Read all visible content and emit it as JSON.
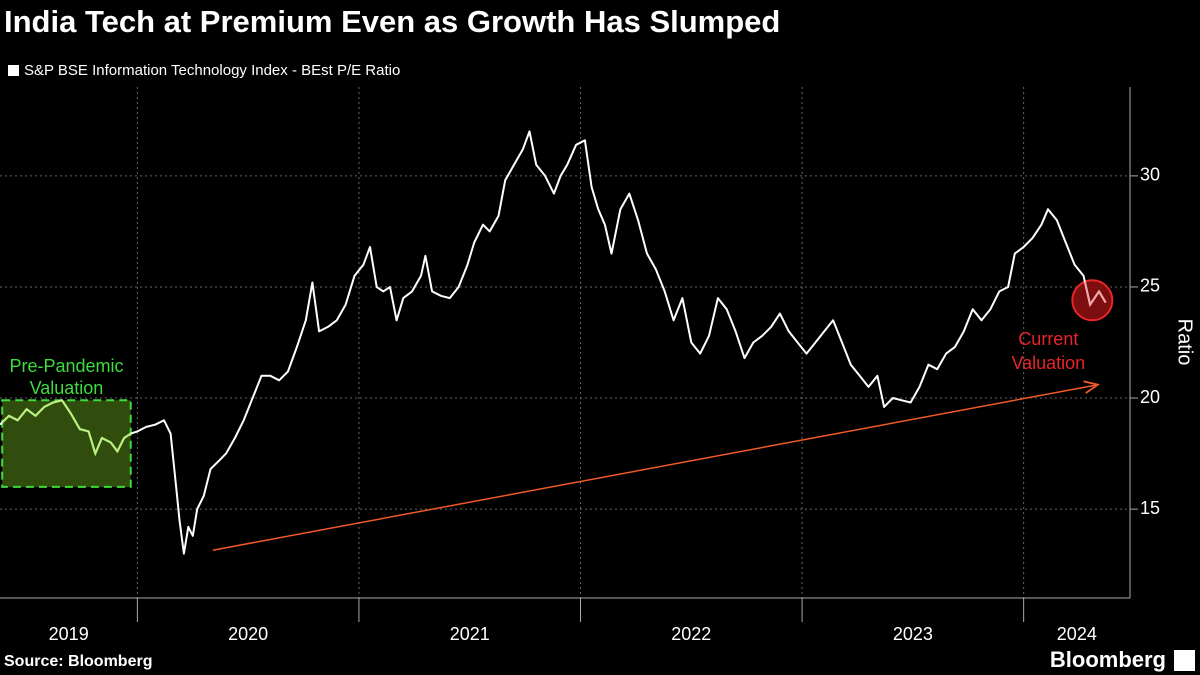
{
  "chart_data": {
    "type": "line",
    "title": "India Tech at Premium Even as Growth Has Slumped",
    "y_label": "Ratio",
    "source": "Source: Bloomberg",
    "logo": "Bloomberg",
    "year_labels": [
      "2019",
      "2020",
      "2021",
      "2022",
      "2023",
      "2024"
    ],
    "xlim": [
      2019.38,
      2024.48
    ],
    "xticks": [
      2020,
      2021,
      2022,
      2023,
      2024
    ],
    "ylim": [
      11,
      34
    ],
    "yticks": [
      15,
      20,
      25,
      30
    ],
    "grid": true,
    "x": [
      2019.38,
      2019.42,
      2019.46,
      2019.5,
      2019.54,
      2019.58,
      2019.62,
      2019.66,
      2019.7,
      2019.74,
      2019.78,
      2019.81,
      2019.84,
      2019.88,
      2019.91,
      2019.94,
      2019.97,
      2020.0,
      2020.04,
      2020.08,
      2020.12,
      2020.15,
      2020.17,
      2020.19,
      2020.21,
      2020.23,
      2020.25,
      2020.27,
      2020.3,
      2020.33,
      2020.37,
      2020.4,
      2020.44,
      2020.48,
      2020.52,
      2020.56,
      2020.6,
      2020.64,
      2020.68,
      2020.72,
      2020.76,
      2020.79,
      2020.82,
      2020.86,
      2020.9,
      2020.94,
      2020.98,
      2021.02,
      2021.05,
      2021.08,
      2021.11,
      2021.14,
      2021.17,
      2021.2,
      2021.24,
      2021.28,
      2021.3,
      2021.33,
      2021.37,
      2021.41,
      2021.45,
      2021.49,
      2021.52,
      2021.56,
      2021.59,
      2021.63,
      2021.66,
      2021.7,
      2021.74,
      2021.77,
      2021.8,
      2021.84,
      2021.88,
      2021.91,
      2021.94,
      2021.98,
      2022.02,
      2022.05,
      2022.08,
      2022.11,
      2022.14,
      2022.18,
      2022.22,
      2022.26,
      2022.3,
      2022.34,
      2022.38,
      2022.42,
      2022.46,
      2022.5,
      2022.54,
      2022.58,
      2022.62,
      2022.66,
      2022.7,
      2022.74,
      2022.78,
      2022.82,
      2022.86,
      2022.9,
      2022.94,
      2022.98,
      2023.02,
      2023.06,
      2023.1,
      2023.14,
      2023.18,
      2023.22,
      2023.26,
      2023.3,
      2023.34,
      2023.37,
      2023.41,
      2023.45,
      2023.49,
      2023.53,
      2023.57,
      2023.61,
      2023.65,
      2023.69,
      2023.73,
      2023.77,
      2023.81,
      2023.85,
      2023.89,
      2023.93,
      2023.96,
      2024.0,
      2024.04,
      2024.08,
      2024.11,
      2024.15,
      2024.19,
      2024.23,
      2024.27,
      2024.3,
      2024.34,
      2024.37
    ],
    "series": [
      {
        "name": "S&P BSE Information Technology Index - BEst P/E Ratio",
        "color": "#ffffff",
        "values": [
          18.8,
          19.2,
          19.0,
          19.5,
          19.2,
          19.6,
          19.8,
          19.9,
          19.3,
          18.6,
          18.5,
          17.5,
          18.2,
          18.0,
          17.6,
          18.2,
          18.4,
          18.5,
          18.7,
          18.8,
          19.0,
          18.4,
          16.5,
          14.5,
          13.0,
          14.2,
          13.8,
          15.0,
          15.6,
          16.8,
          17.2,
          17.5,
          18.2,
          19.0,
          20.0,
          21.0,
          21.0,
          20.8,
          21.2,
          22.3,
          23.5,
          25.2,
          23.0,
          23.2,
          23.5,
          24.2,
          25.5,
          26.0,
          26.8,
          25.0,
          24.8,
          25.0,
          23.5,
          24.5,
          24.8,
          25.5,
          26.4,
          24.8,
          24.6,
          24.5,
          25.0,
          26.0,
          27.0,
          27.8,
          27.5,
          28.2,
          29.8,
          30.5,
          31.2,
          32.0,
          30.5,
          30.0,
          29.2,
          30.0,
          30.5,
          31.4,
          31.6,
          29.5,
          28.5,
          27.8,
          26.5,
          28.5,
          29.2,
          28.0,
          26.5,
          25.8,
          24.8,
          23.5,
          24.5,
          22.5,
          22.0,
          22.8,
          24.5,
          24.0,
          23.0,
          21.8,
          22.5,
          22.8,
          23.2,
          23.8,
          23.0,
          22.5,
          22.0,
          22.5,
          23.0,
          23.5,
          22.5,
          21.5,
          21.0,
          20.5,
          21.0,
          19.6,
          20.0,
          19.9,
          19.8,
          20.5,
          21.5,
          21.3,
          22.0,
          22.3,
          23.0,
          24.0,
          23.5,
          24.0,
          24.8,
          25.0,
          26.5,
          26.8,
          27.2,
          27.8,
          28.5,
          28.0,
          27.0,
          26.0,
          25.5,
          24.2,
          24.8,
          24.3
        ]
      }
    ],
    "annotations": [
      {
        "text": [
          "Pre-Pandemic",
          "Valuation"
        ],
        "color": "#3ddc3d",
        "x": [
          2019.39,
          2019.97
        ],
        "y": [
          16,
          19.9
        ]
      },
      {
        "text": [
          "Current",
          "Valuation"
        ],
        "color": "#e8242a",
        "x": [
          2024.31
        ],
        "y": [
          24.4
        ]
      },
      {
        "color": "#f05a28",
        "x": [
          2020.34,
          2024.335
        ],
        "y": [
          13.15,
          20.6
        ]
      }
    ]
  }
}
